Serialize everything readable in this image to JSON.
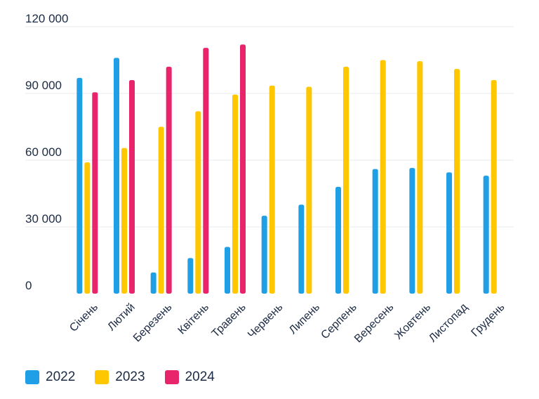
{
  "chart_data": {
    "type": "bar",
    "categories": [
      "Січень",
      "Лютий",
      "Березень",
      "Квітень",
      "Травень",
      "Червень",
      "Липень",
      "Серпень",
      "Вересень",
      "Жовтень",
      "Листопад",
      "Грудень"
    ],
    "series": [
      {
        "name": "2022",
        "color": "#1e9fe6",
        "values": [
          97000,
          106000,
          9500,
          16000,
          21000,
          35000,
          40000,
          48000,
          56000,
          56500,
          54500,
          53000
        ]
      },
      {
        "name": "2023",
        "color": "#ffc700",
        "values": [
          59000,
          65500,
          75000,
          82000,
          89500,
          93500,
          93000,
          102000,
          105000,
          104500,
          101000,
          96000
        ]
      },
      {
        "name": "2024",
        "color": "#e8246a",
        "values": [
          90500,
          96000,
          102000,
          110500,
          112000,
          null,
          null,
          null,
          null,
          null,
          null,
          null
        ]
      }
    ],
    "y_ticks": [
      0,
      30000,
      60000,
      90000,
      120000
    ],
    "y_tick_labels": [
      "0",
      "30 000",
      "60 000",
      "90 000",
      "120 000"
    ],
    "ylim": [
      0,
      120000
    ],
    "grid": true,
    "legend_position": "bottom-left"
  }
}
